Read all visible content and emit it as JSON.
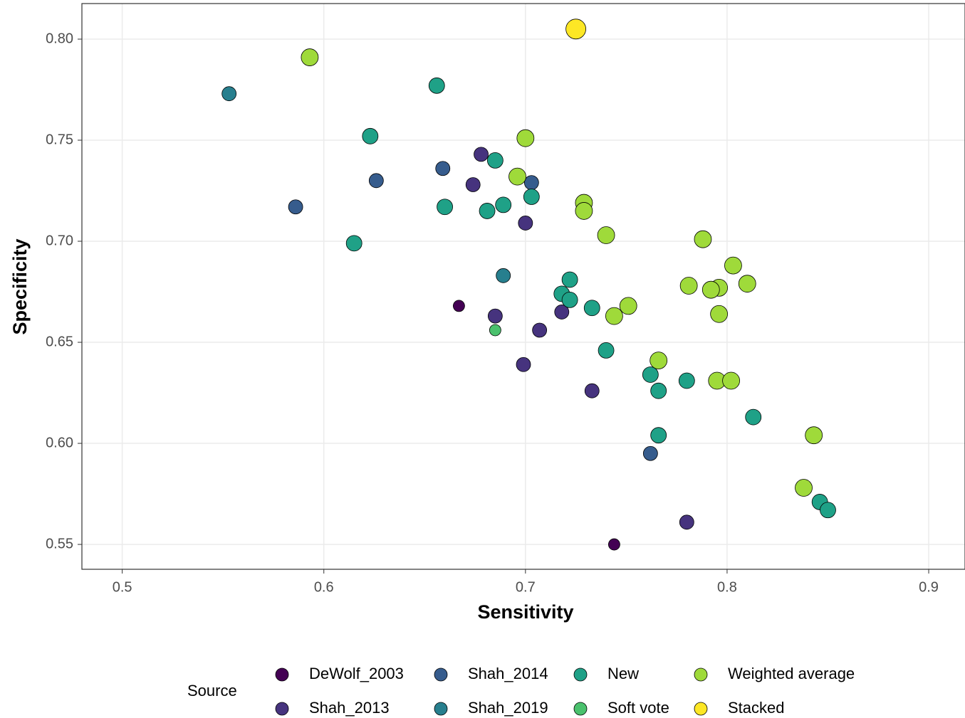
{
  "chart_data": {
    "type": "scatter",
    "x_label": "Sensitivity",
    "y_label": "Specificity",
    "legend_title": "Source",
    "legend_position": "bottom",
    "xlim": [
      0.48,
      0.918
    ],
    "ylim": [
      0.5377,
      0.8176
    ],
    "xticks": [
      0.5,
      0.6,
      0.7,
      0.8,
      0.9
    ],
    "yticks": [
      {
        "value": 0.55,
        "label": "0.55"
      },
      {
        "value": 0.6,
        "label": "0.60"
      },
      {
        "value": 0.65,
        "label": "0.65"
      },
      {
        "value": 0.7,
        "label": "0.70"
      },
      {
        "value": 0.75,
        "label": "0.75"
      },
      {
        "value": 0.8,
        "label": "0.80"
      }
    ],
    "grid": true,
    "series": [
      {
        "name": "DeWolf_2003",
        "color": "#440154",
        "size": 8,
        "x": [
          0.667,
          0.744
        ],
        "y": [
          0.668,
          0.55
        ]
      },
      {
        "name": "Shah_2013",
        "color": "#46337E",
        "size": 10,
        "x": [
          0.678,
          0.674,
          0.7,
          0.685,
          0.707,
          0.718,
          0.699,
          0.733,
          0.78
        ],
        "y": [
          0.743,
          0.728,
          0.709,
          0.663,
          0.656,
          0.665,
          0.639,
          0.626,
          0.561
        ]
      },
      {
        "name": "Shah_2014",
        "color": "#365C8D",
        "size": 10,
        "x": [
          0.626,
          0.586,
          0.659,
          0.703,
          0.762
        ],
        "y": [
          0.73,
          0.717,
          0.736,
          0.729,
          0.595
        ]
      },
      {
        "name": "Shah_2019",
        "color": "#277F8E",
        "size": 10,
        "x": [
          0.553,
          0.689
        ],
        "y": [
          0.773,
          0.683
        ]
      },
      {
        "name": "New",
        "color": "#1FA187",
        "size": 11,
        "x": [
          0.656,
          0.623,
          0.615,
          0.66,
          0.685,
          0.681,
          0.689,
          0.703,
          0.722,
          0.718,
          0.722,
          0.733,
          0.74,
          0.762,
          0.766,
          0.78,
          0.766,
          0.813,
          0.846,
          0.85
        ],
        "y": [
          0.777,
          0.752,
          0.699,
          0.717,
          0.74,
          0.715,
          0.718,
          0.722,
          0.681,
          0.674,
          0.671,
          0.667,
          0.646,
          0.634,
          0.626,
          0.631,
          0.604,
          0.613,
          0.571,
          0.567
        ]
      },
      {
        "name": "Soft vote",
        "color": "#4AC16D",
        "size": 8,
        "x": [
          0.685
        ],
        "y": [
          0.656
        ]
      },
      {
        "name": "Weighted average",
        "color": "#9FDA3A",
        "size": 12,
        "x": [
          0.593,
          0.7,
          0.696,
          0.729,
          0.729,
          0.74,
          0.788,
          0.803,
          0.81,
          0.781,
          0.796,
          0.792,
          0.796,
          0.744,
          0.751,
          0.766,
          0.795,
          0.802,
          0.843,
          0.838
        ],
        "y": [
          0.791,
          0.751,
          0.732,
          0.719,
          0.715,
          0.703,
          0.701,
          0.688,
          0.679,
          0.678,
          0.677,
          0.676,
          0.664,
          0.663,
          0.668,
          0.641,
          0.631,
          0.631,
          0.604,
          0.578
        ]
      },
      {
        "name": "Stacked",
        "color": "#FDE725",
        "size": 14,
        "x": [
          0.725
        ],
        "y": [
          0.805
        ]
      }
    ]
  }
}
